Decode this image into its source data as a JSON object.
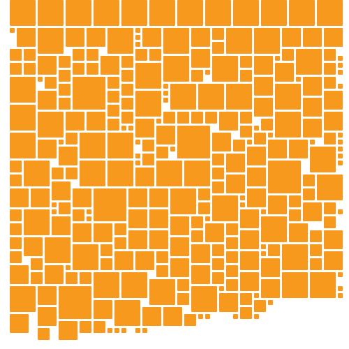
{
  "colors": {
    "background": "#ffffff",
    "tile": "#F7991C"
  }
}
